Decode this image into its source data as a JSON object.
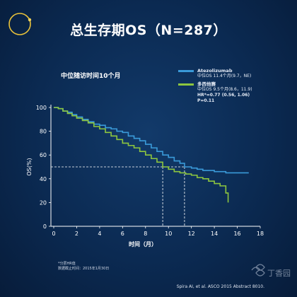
{
  "slide": {
    "title": "总生存期OS（N=287）",
    "subtitle": "中位随访时间10个月",
    "footnote_lines": [
      "*分层HR值",
      "数据截止时间：2015年1月30日"
    ],
    "citation": "Spira AI, et al. ASCO 2015 Abstract 8010.",
    "watermark_text": "丁香园"
  },
  "legend": {
    "series": [
      {
        "name": "Atezolizumab",
        "detail": "中位OS 11.4个月(9.7，NE)",
        "color": "#3a9ad9"
      },
      {
        "name": "多西他赛",
        "detail": "中位OS 9.5个月(8.6，11.9)",
        "color": "#8dc63f"
      }
    ],
    "hr_text": "HR*=0.77 (0.56, 1.06)",
    "p_text": "P=0.11"
  },
  "chart_data": {
    "type": "line",
    "title": "",
    "xlabel": "时间（月）",
    "ylabel": "OS(%)",
    "xlim": [
      0,
      18
    ],
    "ylim": [
      0,
      100
    ],
    "xticks": [
      0,
      2,
      4,
      6,
      8,
      10,
      12,
      14,
      16,
      18
    ],
    "yticks": [
      0,
      20,
      40,
      60,
      80,
      100
    ],
    "grid": false,
    "legend_position": "top-right",
    "reference_lines": {
      "y_median": 50,
      "x_medians": [
        9.5,
        11.4
      ]
    },
    "series": [
      {
        "name": "Atezolizumab",
        "color": "#3a9ad9",
        "x": [
          0,
          0.4,
          0.8,
          1.2,
          1.6,
          2.0,
          2.5,
          3.0,
          3.5,
          4.0,
          4.5,
          5.0,
          5.5,
          6.0,
          6.5,
          7.0,
          7.5,
          8.0,
          8.5,
          9.0,
          9.5,
          10.0,
          10.5,
          11.0,
          11.4,
          12.0,
          12.5,
          13.0,
          13.5,
          14.0,
          14.5,
          15.0,
          15.5,
          16.0,
          16.5,
          17.0
        ],
        "y": [
          100,
          99,
          97,
          96,
          94,
          92,
          90,
          88,
          86,
          85,
          83,
          82,
          80,
          79,
          76,
          74,
          72,
          69,
          66,
          63,
          60,
          58,
          55,
          53,
          50,
          49,
          48,
          47,
          47,
          46,
          46,
          45,
          45,
          45,
          45,
          45
        ]
      },
      {
        "name": "多西他赛",
        "color": "#8dc63f",
        "x": [
          0,
          0.4,
          0.8,
          1.2,
          1.6,
          2.0,
          2.5,
          3.0,
          3.5,
          4.0,
          4.5,
          5.0,
          5.5,
          6.0,
          6.5,
          7.0,
          7.5,
          8.0,
          8.5,
          9.0,
          9.5,
          10.0,
          10.5,
          11.0,
          11.5,
          12.0,
          12.5,
          13.0,
          13.5,
          14.0,
          14.5,
          15.0,
          15.2
        ],
        "y": [
          100,
          99,
          97,
          95,
          93,
          91,
          89,
          87,
          84,
          82,
          79,
          76,
          73,
          70,
          68,
          66,
          63,
          60,
          57,
          54,
          50,
          48,
          46,
          45,
          44,
          43,
          41,
          40,
          38,
          36,
          34,
          28,
          20
        ]
      }
    ]
  }
}
